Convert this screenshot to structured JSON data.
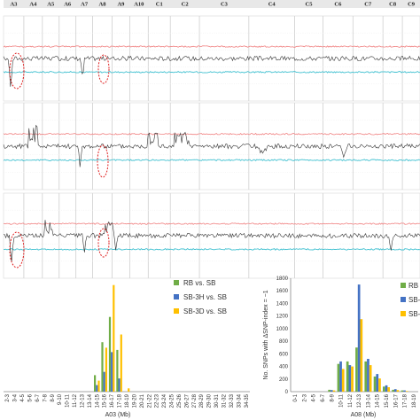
{
  "chart_data": [
    {
      "type": "line",
      "chromosomes": [
        "A3",
        "A4",
        "A5",
        "A6",
        "A7",
        "A8",
        "A9",
        "A10",
        "C1",
        "C2",
        "C3",
        "C4",
        "C5",
        "C6",
        "C7",
        "C8",
        "C9"
      ],
      "chrom_widths": [
        23,
        21,
        19,
        19,
        19,
        22,
        20,
        21,
        25,
        33,
        56,
        52,
        32,
        34,
        34,
        22,
        20
      ],
      "panels": [
        {
          "dips": [
            [
              0.35,
              -0.75
            ],
            [
              4.4,
              -0.55
            ]
          ],
          "jumps": []
        },
        {
          "dips": [
            [
              4.25,
              -0.6
            ],
            [
              11.3,
              -0.2
            ],
            [
              13.7,
              -0.25
            ]
          ],
          "jumps": [
            [
              1.5,
              0.5
            ],
            [
              8.2,
              0.35
            ],
            [
              9.4,
              0.3
            ]
          ]
        },
        {
          "dips": [
            [
              0.4,
              -0.65
            ],
            [
              4.5,
              -0.5
            ],
            [
              6.2,
              -0.35
            ],
            [
              15.4,
              -0.4
            ]
          ],
          "jumps": [
            [
              2.4,
              0.4
            ],
            [
              5.9,
              0.3
            ]
          ]
        }
      ],
      "threshold_colors": {
        "upper": "#f08080",
        "lower": "#40c0d0",
        "index": "#333333",
        "ellipse": "#e02020"
      }
    },
    {
      "type": "bar",
      "xlabel": "A03 (Mb)",
      "categories": [
        "2-3",
        "3-4",
        "4-5",
        "5-6",
        "6-7",
        "7-8",
        "8-9",
        "9-10",
        "10-11",
        "11-12",
        "12-13",
        "13-14",
        "14-15",
        "15-16",
        "16-17",
        "17-18",
        "18-19",
        "19-20",
        "20-21",
        "21-22",
        "22-23",
        "23-24",
        "24-25",
        "25-26",
        "26-27",
        "27-28",
        "28-29",
        "29-30",
        "30-31",
        "31-32",
        "32-33",
        "33-34",
        "34-35"
      ],
      "series": [
        {
          "name": "RB vs. SB",
          "color": "#70ad47",
          "values": [
            0,
            0,
            0,
            0,
            0,
            0,
            0,
            0,
            0,
            0,
            0,
            0,
            15,
            45,
            68,
            38,
            0,
            0,
            0,
            0,
            0,
            0,
            0,
            0,
            0,
            0,
            0,
            0,
            0,
            0,
            0,
            0,
            0
          ]
        },
        {
          "name": "SB-3H vs. SB",
          "color": "#4472c4",
          "values": [
            0,
            0,
            0,
            0,
            0,
            0,
            0,
            0,
            0,
            0,
            0,
            0,
            6,
            18,
            36,
            12,
            0,
            0,
            0,
            0,
            0,
            0,
            0,
            0,
            0,
            0,
            0,
            0,
            0,
            0,
            0,
            0,
            0
          ]
        },
        {
          "name": "SB-3D vs. SB",
          "color": "#ffc000",
          "values": [
            0,
            0,
            0,
            0,
            0,
            0,
            0,
            0,
            0,
            0,
            0,
            0,
            10,
            40,
            97,
            52,
            3,
            0,
            0,
            0,
            0,
            0,
            0,
            0,
            0,
            0,
            0,
            0,
            0,
            0,
            0,
            0,
            0
          ]
        }
      ],
      "ylim": [
        0,
        100
      ]
    },
    {
      "type": "bar",
      "xlabel": "A08 (Mb)",
      "ylabel": "No. SNPs with ΔSNP-index = −1",
      "categories": [
        "0-1",
        "2-3",
        "4-5",
        "6-7",
        "8-9",
        "10-11",
        "11-12",
        "12-13",
        "13-14",
        "14-15",
        "15-16",
        "16-17",
        "17-18",
        "18-19"
      ],
      "yticks": [
        0,
        200,
        400,
        600,
        800,
        1000,
        1200,
        1400,
        1600,
        1800
      ],
      "ylim": [
        0,
        1800
      ],
      "series": [
        {
          "name": "RB",
          "color": "#70ad47",
          "values": [
            0,
            0,
            0,
            0,
            30,
            440,
            480,
            700,
            480,
            240,
            80,
            30,
            20,
            0
          ]
        },
        {
          "name": "SB-",
          "color": "#4472c4",
          "values": [
            0,
            0,
            0,
            0,
            25,
            480,
            420,
            1700,
            520,
            280,
            100,
            40,
            20,
            0
          ]
        },
        {
          "name": "SB-",
          "color": "#ffc000",
          "values": [
            0,
            0,
            0,
            0,
            20,
            360,
            400,
            1150,
            420,
            210,
            70,
            25,
            10,
            0
          ]
        }
      ]
    }
  ]
}
